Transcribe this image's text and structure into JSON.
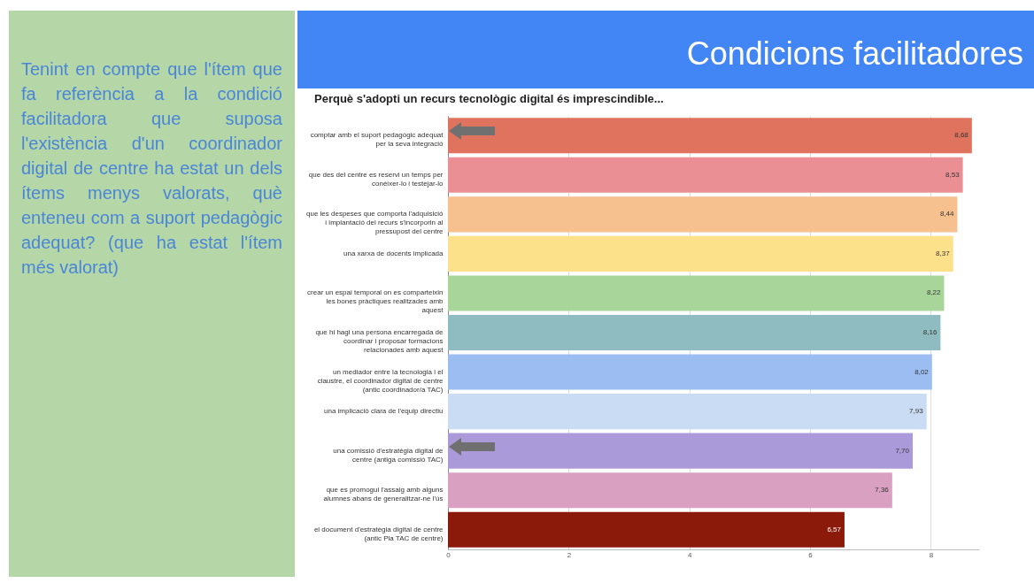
{
  "chart_data": {
    "type": "bar",
    "orientation": "horizontal",
    "title": "Condicions facilitadores",
    "subtitle": "Perquè s'adopti un recurs tecnològic digital és imprescindible...",
    "annotations": [
      "Tenint en compte que l'ítem que fa referència a la condició facilitadora que suposa l'existència d'un coordinador digital de centre ha estat un dels ítems menys valorats, què enteneu com a suport pedagògic adequat? (que ha estat l'ítem més valorat)"
    ],
    "categories": [
      "comptar amb el suport pedagògic adequat per la seva integració",
      "que des del centre es reservi un temps per conèixer-lo i testejar-lo",
      "que les despeses que comporta l'adquisició i implantació del recurs s'incorporin al pressupost del centre",
      "una xarxa de docents implicada",
      "crear un espai temporal on es comparteixin les bones pràctiques realitzades amb aquest",
      "que hi hagi una persona encarregada de coordinar i proposar formacions relacionades amb aquest",
      "un mediador entre la tecnologia i el claustre, el coordinador digital de centre (antic coordinador/a TAC)",
      "una implicació clara de l'equip directiu",
      "una comissió d'estratègia digital de centre (antiga comissió TAC)",
      "que es promogui l'assaig amb alguns alumnes abans de generalitzar-ne l'ús",
      "el document d'estratègia digital de centre (antic Pla TAC de centre)"
    ],
    "values": [
      8.68,
      8.53,
      8.44,
      8.37,
      8.22,
      8.16,
      8.02,
      7.93,
      7.7,
      7.36,
      6.57
    ],
    "value_labels": [
      "8,68",
      "8,53",
      "8,44",
      "8,37",
      "8,22",
      "8,16",
      "8,02",
      "7,93",
      "7,70",
      "7,36",
      "6,57"
    ],
    "colors": [
      "#e0735e",
      "#ea8f94",
      "#f6c08f",
      "#fde08a",
      "#a8d69a",
      "#8fbcc0",
      "#9cbdf2",
      "#c9dcf3",
      "#ab9ad9",
      "#d9a0c2",
      "#8b1a0a"
    ],
    "xlim": [
      0,
      8.8
    ],
    "xticks": [
      0,
      2,
      4,
      6,
      8
    ],
    "grid": "x"
  }
}
